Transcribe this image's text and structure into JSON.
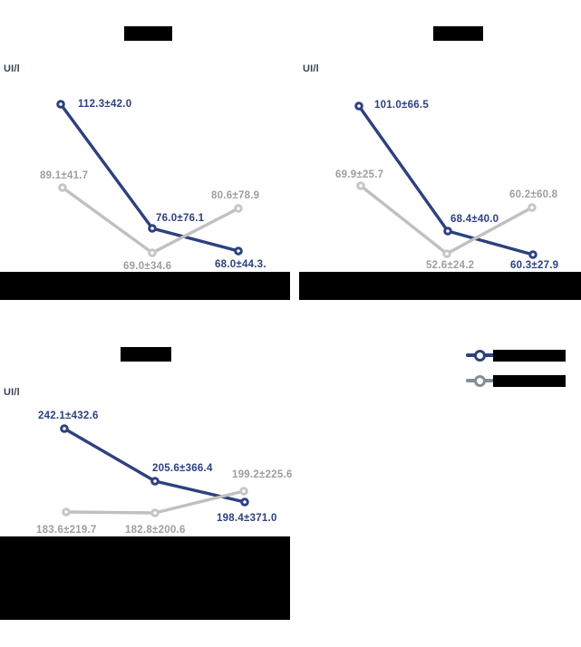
{
  "figure": {
    "unit_label": "UI/l",
    "colors": {
      "background": "#ffffff",
      "redaction": "#000000",
      "unit_label": "#3a4151",
      "series_a": "#2d417f",
      "series_a_text": "#2d417f",
      "series_b_line": "#c0c0c0",
      "series_b_marker": "#c6c6c6",
      "series_b_text": "#9c9ea1",
      "legend_series_a": "#2d417f",
      "legend_series_b": "#868d99"
    }
  },
  "chart_data": [
    {
      "type": "line",
      "id": "top-left",
      "title_redacted": true,
      "ylabel": "UI/l",
      "x": [
        1,
        2,
        3
      ],
      "x_labels_redacted": true,
      "legend_position": "right",
      "grid": false,
      "series": [
        {
          "name": "series-a",
          "values": [
            112.3,
            76.0,
            68.0
          ],
          "sd": [
            42.0,
            76.1,
            44.3
          ],
          "point_labels": [
            "112.3±42.0",
            "76.0±76.1",
            "68.0±44.3."
          ]
        },
        {
          "name": "series-b",
          "values": [
            89.1,
            69.0,
            80.6
          ],
          "sd": [
            41.7,
            34.6,
            78.9
          ],
          "point_labels": [
            "89.1±41.7",
            "69.0±34.6",
            "80.6±78.9"
          ]
        }
      ],
      "plot": {
        "series_a_points": [
          [
            67,
            47
          ],
          [
            168,
            184
          ],
          [
            263,
            209
          ]
        ],
        "series_b_points": [
          [
            69,
            139
          ],
          [
            168,
            211
          ],
          [
            263,
            162
          ]
        ],
        "series_a_label_pos": [
          [
            86,
            41
          ],
          [
            172,
            167
          ],
          [
            237,
            218
          ]
        ],
        "series_b_label_pos": [
          [
            44,
            120
          ],
          [
            136,
            220
          ],
          [
            233,
            142
          ]
        ],
        "redaction_band": [
          0,
          232,
          320,
          31
        ]
      }
    },
    {
      "type": "line",
      "id": "top-right",
      "title_redacted": true,
      "ylabel": "UI/l",
      "x": [
        1,
        2,
        3
      ],
      "x_labels_redacted": true,
      "grid": false,
      "series": [
        {
          "name": "series-a",
          "values": [
            101.0,
            68.4,
            60.3
          ],
          "sd": [
            66.5,
            40.0,
            27.9
          ],
          "point_labels": [
            "101.0±66.5",
            "68.4±40.0",
            "60.3±27.9"
          ]
        },
        {
          "name": "series-b",
          "values": [
            69.9,
            52.6,
            60.2
          ],
          "sd": [
            25.7,
            24.2,
            60.8
          ],
          "point_labels": [
            "69.9±25.7",
            "52.6±24.2",
            "60.2±60.8"
          ]
        }
      ],
      "plot": {
        "series_a_points": [
          [
            66,
            49
          ],
          [
            164,
            187
          ],
          [
            258,
            213
          ]
        ],
        "series_b_points": [
          [
            68,
            137
          ],
          [
            163,
            212
          ],
          [
            257,
            161
          ]
        ],
        "series_a_label_pos": [
          [
            83,
            42
          ],
          [
            167,
            168
          ],
          [
            233,
            219
          ]
        ],
        "series_b_label_pos": [
          [
            40,
            119
          ],
          [
            140,
            219
          ],
          [
            232,
            141
          ]
        ],
        "redaction_band": [
          0,
          232,
          311,
          31
        ]
      }
    },
    {
      "type": "line",
      "id": "bottom-left",
      "title_redacted": true,
      "ylabel": "UI/l",
      "x": [
        1,
        2,
        3
      ],
      "x_labels_redacted": true,
      "grid": false,
      "series": [
        {
          "name": "series-a",
          "values": [
            242.1,
            205.6,
            198.4
          ],
          "sd": [
            432.6,
            366.4,
            371.0
          ],
          "point_labels": [
            "242.1±432.6",
            "205.6±366.4",
            "198.4±371.0"
          ]
        },
        {
          "name": "series-b",
          "values": [
            183.6,
            182.8,
            199.2
          ],
          "sd": [
            219.7,
            200.6,
            225.6
          ],
          "point_labels": [
            "183.6±219.7",
            "182.8±200.6",
            "199.2±225.6"
          ]
        }
      ],
      "plot": {
        "series_a_points": [
          [
            71,
            48
          ],
          [
            171,
            106
          ],
          [
            270,
            129
          ]
        ],
        "series_b_points": [
          [
            73,
            140
          ],
          [
            171,
            141
          ],
          [
            269,
            117
          ]
        ],
        "series_a_label_pos": [
          [
            42,
            28
          ],
          [
            168,
            86
          ],
          [
            239,
            141
          ]
        ],
        "series_b_label_pos": [
          [
            40,
            154
          ],
          [
            138,
            154
          ],
          [
            256,
            93
          ]
        ],
        "redaction_band": [
          0,
          167,
          320,
          92
        ]
      }
    }
  ],
  "legend": {
    "items": [
      {
        "series": "series-a",
        "label_redacted": true
      },
      {
        "series": "series-b",
        "label_redacted": true
      }
    ]
  }
}
